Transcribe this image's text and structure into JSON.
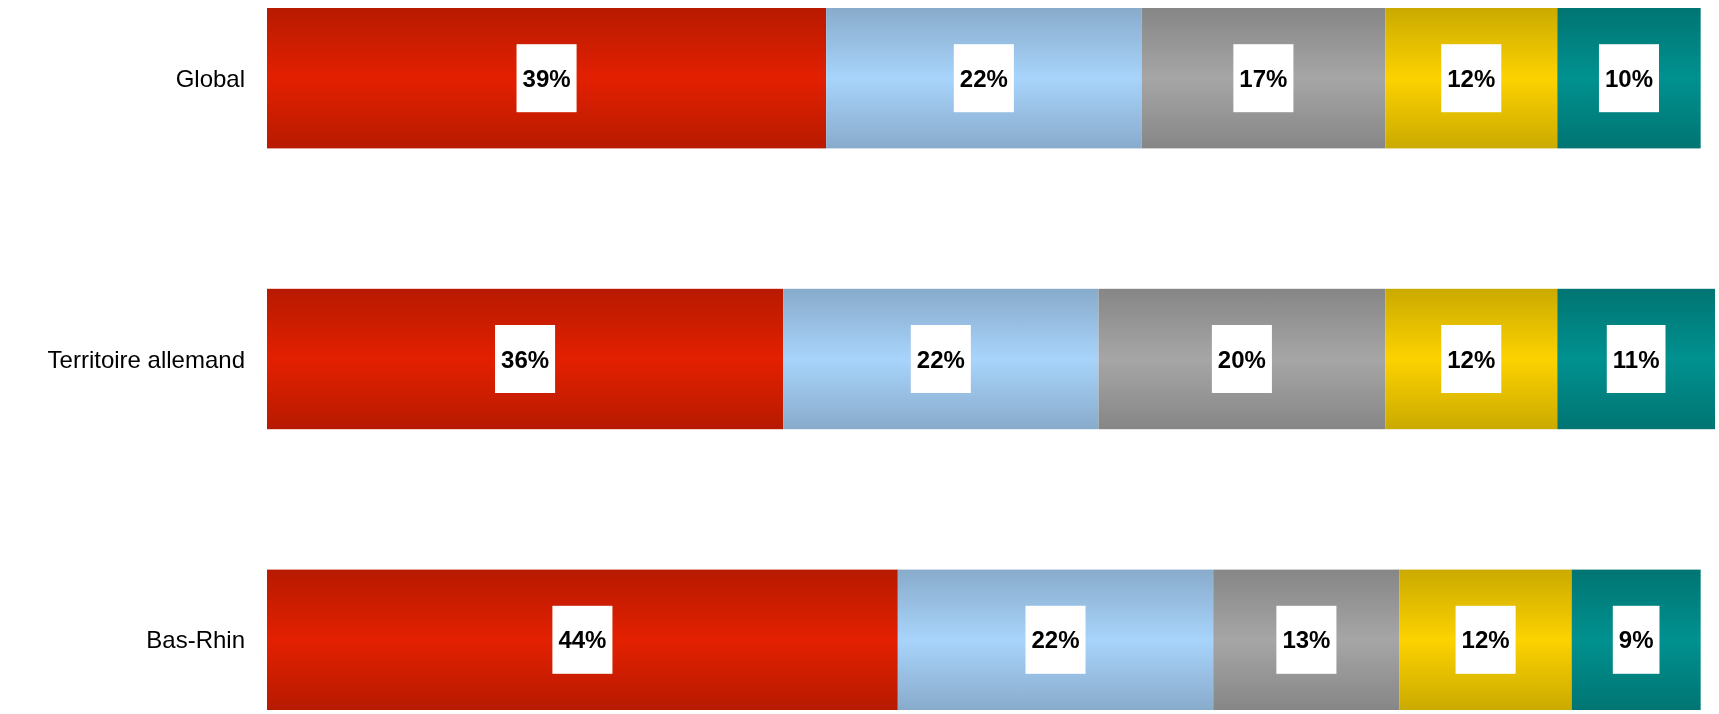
{
  "chart_data": {
    "type": "bar",
    "orientation": "horizontal",
    "stacked": true,
    "categories": [
      "Global",
      "Territoire allemand",
      "Bas-Rhin"
    ],
    "series": [
      {
        "color": "#e32000",
        "values": [
          39,
          36,
          44
        ],
        "value_labels": [
          "39%",
          "36%",
          "44%"
        ]
      },
      {
        "color": "#a8d4fb",
        "values": [
          22,
          22,
          22
        ],
        "value_labels": [
          "22%",
          "22%",
          "22%"
        ]
      },
      {
        "color": "#a6a6a6",
        "values": [
          17,
          20,
          13
        ],
        "value_labels": [
          "17%",
          "20%",
          "13%"
        ]
      },
      {
        "color": "#fcd200",
        "values": [
          12,
          12,
          12
        ],
        "value_labels": [
          "12%",
          "12%",
          "12%"
        ]
      },
      {
        "color": "#00918f",
        "values": [
          10,
          11,
          9
        ],
        "value_labels": [
          "10%",
          "11%",
          "9%"
        ]
      }
    ]
  }
}
